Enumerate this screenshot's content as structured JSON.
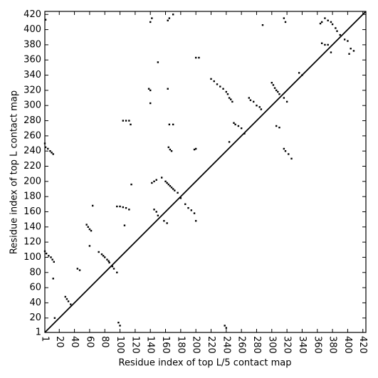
{
  "chart_data": {
    "type": "scatter",
    "x_label": "Residue index of top L/5 contact map",
    "y_label": "Residue index of top L contact map",
    "xlim": [
      1,
      424
    ],
    "ylim": [
      1,
      424
    ],
    "xticks": [
      1,
      20,
      40,
      60,
      80,
      100,
      120,
      140,
      160,
      180,
      200,
      220,
      240,
      260,
      280,
      300,
      320,
      340,
      360,
      380,
      400,
      420
    ],
    "yticks": [
      1,
      20,
      40,
      60,
      80,
      100,
      120,
      140,
      160,
      180,
      200,
      220,
      240,
      260,
      280,
      300,
      320,
      340,
      360,
      380,
      400,
      420
    ],
    "color": "#000000",
    "x": [
      2,
      1,
      2,
      5,
      8,
      10,
      12,
      1,
      3,
      6,
      9,
      11,
      13,
      12,
      14,
      28,
      30,
      32,
      35,
      44,
      47,
      56,
      58,
      60,
      62,
      60,
      64,
      72,
      76,
      78,
      80,
      83,
      85,
      86,
      90,
      92,
      96,
      96,
      100,
      104,
      108,
      112,
      104,
      108,
      112,
      114,
      115,
      138,
      140,
      140,
      142,
      150,
      142,
      145,
      148,
      140,
      155,
      160,
      162,
      164,
      166,
      168,
      170,
      172,
      176,
      163,
      163,
      165,
      170,
      164,
      166,
      168,
      165,
      170,
      200,
      198,
      200,
      204,
      220,
      224,
      228,
      232,
      236,
      240,
      242,
      244,
      246,
      248,
      250,
      252,
      256,
      260,
      264,
      270,
      272,
      276,
      280,
      284,
      286,
      288,
      300,
      302,
      304,
      306,
      308,
      310,
      306,
      310,
      316,
      318,
      316,
      320,
      316,
      318,
      322,
      326,
      336,
      340,
      364,
      366,
      370,
      374,
      378,
      380,
      384,
      386,
      366,
      370,
      374,
      378,
      390,
      396,
      400,
      404,
      408,
      402,
      148,
      145,
      150,
      158,
      162,
      106,
      180,
      186,
      190,
      194,
      198,
      200,
      98,
      100,
      238,
      240,
      244
    ],
    "y": [
      413,
      250,
      245,
      243,
      240,
      238,
      236,
      108,
      105,
      102,
      100,
      97,
      94,
      72,
      20,
      48,
      45,
      42,
      38,
      85,
      83,
      143,
      140,
      137,
      135,
      115,
      168,
      107,
      104,
      102,
      100,
      97,
      95,
      93,
      88,
      85,
      80,
      167,
      167,
      166,
      165,
      163,
      280,
      280,
      280,
      275,
      196,
      322,
      320,
      410,
      415,
      357,
      198,
      200,
      202,
      303,
      205,
      200,
      198,
      196,
      194,
      192,
      190,
      188,
      185,
      322,
      412,
      415,
      420,
      245,
      242,
      240,
      275,
      275,
      243,
      242,
      363,
      363,
      335,
      332,
      328,
      325,
      322,
      318,
      315,
      310,
      308,
      305,
      277,
      275,
      273,
      270,
      263,
      310,
      307,
      305,
      300,
      298,
      295,
      406,
      330,
      327,
      323,
      320,
      318,
      315,
      273,
      271,
      415,
      410,
      310,
      305,
      243,
      240,
      236,
      230,
      343,
      340,
      408,
      410,
      415,
      412,
      410,
      407,
      402,
      398,
      382,
      380,
      380,
      370,
      393,
      387,
      385,
      375,
      372,
      368,
      160,
      163,
      155,
      148,
      145,
      142,
      178,
      170,
      165,
      162,
      158,
      148,
      14,
      10,
      10,
      7,
      252
    ]
  }
}
